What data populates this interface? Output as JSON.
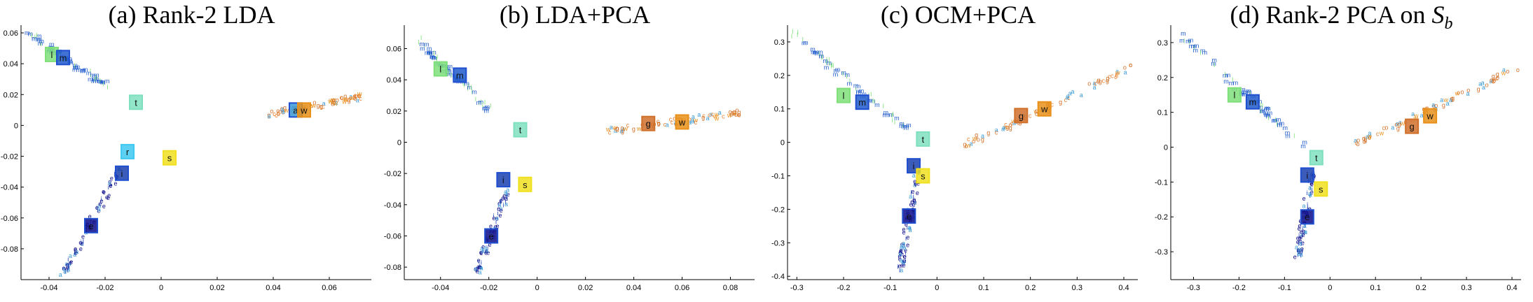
{
  "chart_data": [
    {
      "type": "scatter",
      "title": "(a) Rank-2 LDA",
      "xlim": [
        -0.05,
        0.075
      ],
      "ylim": [
        -0.1,
        0.065
      ],
      "xticks": [
        -0.04,
        -0.02,
        0,
        0.02,
        0.04,
        0.06
      ],
      "xtick_labels": [
        "-0.04",
        "-0.02",
        "0",
        "0.02",
        "0.04",
        "0.06"
      ],
      "yticks": [
        -0.08,
        -0.06,
        -0.04,
        -0.02,
        0,
        0.02,
        0.04,
        0.06
      ],
      "ytick_labels": [
        "-0.08",
        "-0.06",
        "-0.04",
        "-0.02",
        "0",
        "0.02",
        "0.04",
        "0.06"
      ],
      "centroids": [
        {
          "label": "l",
          "x": -0.039,
          "y": 0.046
        },
        {
          "label": "m",
          "x": -0.035,
          "y": 0.044
        },
        {
          "label": "t",
          "x": -0.009,
          "y": 0.015
        },
        {
          "label": "r",
          "x": -0.012,
          "y": -0.017
        },
        {
          "label": "i",
          "x": -0.014,
          "y": -0.031
        },
        {
          "label": "s",
          "x": 0.003,
          "y": -0.021
        },
        {
          "label": "e",
          "x": -0.025,
          "y": -0.065
        },
        {
          "label": "a",
          "x": 0.048,
          "y": 0.01
        },
        {
          "label": "w",
          "x": 0.051,
          "y": 0.01
        }
      ],
      "arms": {
        "m": [
          [
            -0.047,
            0.058
          ],
          [
            -0.02,
            0.025
          ]
        ],
        "e": [
          [
            -0.035,
            -0.098
          ],
          [
            -0.015,
            -0.03
          ]
        ],
        "w": [
          [
            0.035,
            0.005
          ],
          [
            0.072,
            0.018
          ]
        ]
      }
    },
    {
      "type": "scatter",
      "title": "(b) LDA+PCA",
      "xlim": [
        -0.055,
        0.09
      ],
      "ylim": [
        -0.088,
        0.075
      ],
      "xticks": [
        -0.04,
        -0.02,
        0,
        0.02,
        0.04,
        0.06,
        0.08
      ],
      "xtick_labels": [
        "-0.04",
        "-0.02",
        "0",
        "0.02",
        "0.04",
        "0.06",
        "0.08"
      ],
      "yticks": [
        -0.08,
        -0.06,
        -0.04,
        -0.02,
        0,
        0.02,
        0.04,
        0.06
      ],
      "ytick_labels": [
        "-0.08",
        "-0.06",
        "-0.04",
        "-0.02",
        "0",
        "0.02",
        "0.04",
        "0.06"
      ],
      "centroids": [
        {
          "label": "l",
          "x": -0.04,
          "y": 0.047
        },
        {
          "label": "m",
          "x": -0.032,
          "y": 0.043
        },
        {
          "label": "t",
          "x": -0.007,
          "y": 0.008
        },
        {
          "label": "i",
          "x": -0.014,
          "y": -0.024
        },
        {
          "label": "s",
          "x": -0.005,
          "y": -0.027
        },
        {
          "label": "e",
          "x": -0.019,
          "y": -0.06
        },
        {
          "label": "g",
          "x": 0.046,
          "y": 0.012
        },
        {
          "label": "w",
          "x": 0.06,
          "y": 0.013
        }
      ],
      "arms": {
        "m": [
          [
            -0.05,
            0.065
          ],
          [
            -0.02,
            0.02
          ]
        ],
        "e": [
          [
            -0.025,
            -0.085
          ],
          [
            -0.012,
            -0.03
          ]
        ],
        "w": [
          [
            0.03,
            0.006
          ],
          [
            0.085,
            0.018
          ]
        ]
      }
    },
    {
      "type": "scatter",
      "title": "(c) OCM+PCA",
      "xlim": [
        -0.32,
        0.43
      ],
      "ylim": [
        -0.41,
        0.35
      ],
      "xticks": [
        -0.3,
        -0.2,
        -0.1,
        0,
        0.1,
        0.2,
        0.3,
        0.4
      ],
      "xtick_labels": [
        "-0.3",
        "-0.2",
        "-0.1",
        "0",
        "0.1",
        "0.2",
        "0.3",
        "0.4"
      ],
      "yticks": [
        -0.4,
        -0.3,
        -0.2,
        -0.1,
        0,
        0.1,
        0.2,
        0.3
      ],
      "ytick_labels": [
        "-0.4",
        "-0.3",
        "-0.2",
        "-0.1",
        "0",
        "0.1",
        "0.2",
        "0.3"
      ],
      "centroids": [
        {
          "label": "l",
          "x": -0.2,
          "y": 0.14
        },
        {
          "label": "m",
          "x": -0.16,
          "y": 0.12
        },
        {
          "label": "t",
          "x": -0.03,
          "y": 0.01
        },
        {
          "label": "i",
          "x": -0.05,
          "y": -0.07
        },
        {
          "label": "s",
          "x": -0.03,
          "y": -0.1
        },
        {
          "label": "e",
          "x": -0.06,
          "y": -0.22
        },
        {
          "label": "g",
          "x": 0.18,
          "y": 0.08
        },
        {
          "label": "w",
          "x": 0.23,
          "y": 0.1
        }
      ],
      "arms": {
        "m": [
          [
            -0.31,
            0.32
          ],
          [
            -0.06,
            0.03
          ]
        ],
        "e": [
          [
            -0.08,
            -0.4
          ],
          [
            -0.04,
            -0.08
          ]
        ],
        "w": [
          [
            0.05,
            -0.02
          ],
          [
            0.42,
            0.22
          ]
        ]
      }
    },
    {
      "type": "scatter",
      "title": "(d) Rank-2 PCA on",
      "title_math": "S",
      "title_sub": "b",
      "xlim": [
        -0.35,
        0.42
      ],
      "ylim": [
        -0.38,
        0.35
      ],
      "xticks": [
        -0.3,
        -0.2,
        -0.1,
        0,
        0.1,
        0.2,
        0.3,
        0.4
      ],
      "xtick_labels": [
        "-0.3",
        "-0.2",
        "-0.1",
        "0",
        "0.1",
        "0.2",
        "0.3",
        "0.4"
      ],
      "yticks": [
        -0.3,
        -0.2,
        -0.1,
        0,
        0.1,
        0.2,
        0.3
      ],
      "ytick_labels": [
        "-0.3",
        "-0.2",
        "-0.1",
        "0",
        "0.1",
        "0.2",
        "0.3"
      ],
      "centroids": [
        {
          "label": "l",
          "x": -0.21,
          "y": 0.15
        },
        {
          "label": "m",
          "x": -0.17,
          "y": 0.13
        },
        {
          "label": "t",
          "x": -0.03,
          "y": -0.03
        },
        {
          "label": "i",
          "x": -0.05,
          "y": -0.08
        },
        {
          "label": "s",
          "x": -0.02,
          "y": -0.12
        },
        {
          "label": "e",
          "x": -0.05,
          "y": -0.2
        },
        {
          "label": "g",
          "x": 0.18,
          "y": 0.06
        },
        {
          "label": "w",
          "x": 0.22,
          "y": 0.09
        }
      ],
      "arms": {
        "m": [
          [
            -0.34,
            0.33
          ],
          [
            -0.06,
            0.0
          ]
        ],
        "e": [
          [
            -0.07,
            -0.32
          ],
          [
            -0.04,
            -0.08
          ]
        ],
        "w": [
          [
            0.05,
            0.0
          ],
          [
            0.41,
            0.22
          ]
        ]
      }
    }
  ],
  "colors": {
    "l": "#7fe07a",
    "m": "#1f5bcc",
    "t": "#7fe0c0",
    "r": "#3fc8f0",
    "i": "#1a3fb0",
    "s": "#f0e020",
    "e": "#0a0a8a",
    "a": "#3a9ad8",
    "g": "#d0702a",
    "w": "#e8901a",
    "c": "#e88030",
    "b": "#000"
  }
}
